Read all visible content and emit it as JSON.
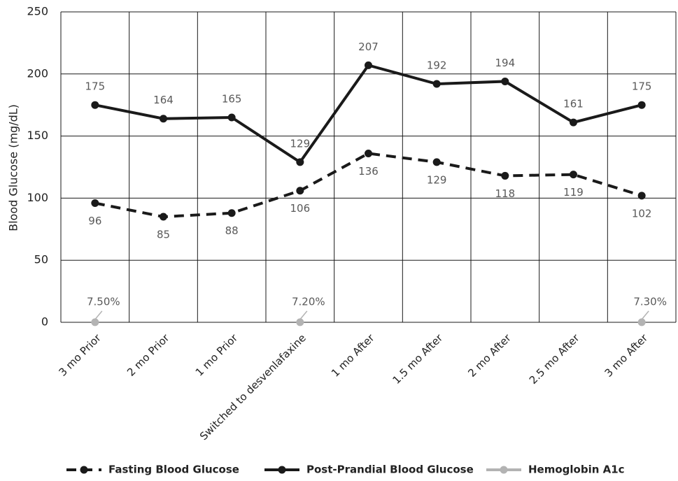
{
  "chart_data": {
    "type": "line",
    "y_label": "Blood Glucose (mg/dL)",
    "categories": [
      "3 mo Prior",
      "2 mo Prior",
      "1 mo Prior",
      "Switched to desvenlafaxine",
      "1 mo After",
      "1.5 mo After",
      "2 mo After",
      "2.5 mo After",
      "3 mo After"
    ],
    "series": [
      {
        "name": "Fasting Blood Glucose",
        "color": "#1a1a1a",
        "dash": true,
        "label_position": "below",
        "values": [
          96,
          85,
          88,
          106,
          136,
          129,
          118,
          119,
          102
        ]
      },
      {
        "name": "Post-Prandial Blood Glucose",
        "color": "#1a1a1a",
        "dash": false,
        "label_position": "above",
        "values": [
          175,
          164,
          165,
          129,
          207,
          192,
          194,
          161,
          175
        ]
      },
      {
        "name": "Hemoglobin A1c",
        "color": "#b3b3b3",
        "dash": false,
        "label_position": "above",
        "values": [
          0.075,
          null,
          null,
          0.072,
          null,
          null,
          null,
          null,
          0.073
        ],
        "value_labels": [
          "7.50%",
          null,
          null,
          "7.20%",
          null,
          null,
          null,
          null,
          "7.30%"
        ]
      }
    ],
    "ylim": [
      0,
      250
    ],
    "yticks": [
      0,
      50,
      100,
      150,
      200,
      250
    ],
    "grid": true,
    "legend": "bottom"
  }
}
